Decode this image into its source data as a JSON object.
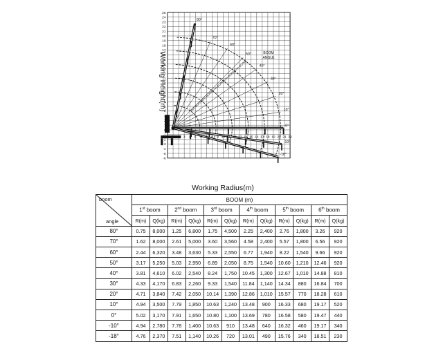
{
  "chart": {
    "x_axis_label": "Working Radius(m)",
    "y_axis_label": "Working Height(m)",
    "boom_angle_note_1": "BOOM",
    "boom_angle_note_2": "ANGLE",
    "x_ticks": [
      "0",
      "1",
      "2",
      "3",
      "4",
      "5",
      "6",
      "7",
      "8",
      "9",
      "10",
      "11",
      "12",
      "13",
      "14",
      "15",
      "16",
      "17",
      "18",
      "19",
      "20",
      "21",
      "22"
    ],
    "y_ticks": [
      "25",
      "24",
      "23",
      "22",
      "21",
      "20",
      "19",
      "18",
      "17",
      "16",
      "15",
      "14",
      "13",
      "12",
      "11",
      "10",
      "9",
      "8",
      "7",
      "6",
      "5",
      "4",
      "3",
      "2",
      "1",
      "0",
      "-1",
      "-2",
      "-3",
      "-4",
      "-5",
      "-6"
    ],
    "angle_labels": [
      "80°",
      "70°",
      "60°",
      "50°",
      "40°",
      "30°",
      "20°",
      "10°",
      "0°",
      "-10°",
      "-18°"
    ],
    "boom_labels": [
      "6TH BOOM",
      "5TH BOOM",
      "4TH BOOM",
      "3RD BOOM",
      "2ND BOOM"
    ],
    "colors": {
      "ink": "#111111"
    }
  },
  "table": {
    "corner_top": "boom",
    "corner_bottom": "angle",
    "boom_header": "BOOM (m)",
    "booms": [
      {
        "num": "1",
        "sup": "st",
        "word": "boom"
      },
      {
        "num": "2",
        "sup": "nd",
        "word": "boom"
      },
      {
        "num": "3",
        "sup": "rd",
        "word": "boom"
      },
      {
        "num": "4",
        "sup": "th",
        "word": "boom"
      },
      {
        "num": "5",
        "sup": "th",
        "word": "boom"
      },
      {
        "num": "6",
        "sup": "th",
        "word": "boom"
      }
    ],
    "sub_r": "R(m)",
    "sub_q": "Q(kg)",
    "rows": [
      {
        "angle": "80°",
        "cells": [
          "0.75",
          "8,000",
          "1.25",
          "6,800",
          "1.75",
          "4,500",
          "2.25",
          "2,400",
          "2.76",
          "1,800",
          "3.26",
          "920"
        ]
      },
      {
        "angle": "70°",
        "cells": [
          "1.62",
          "8,000",
          "2.61",
          "5,000",
          "3.60",
          "3,560",
          "4.58",
          "2,400",
          "5.57",
          "1,800",
          "6.56",
          "920"
        ]
      },
      {
        "angle": "60°",
        "cells": [
          "2.44",
          "6,320",
          "3.48",
          "3,630",
          "5.33",
          "2,550",
          "6.77",
          "1,940",
          "8.22",
          "1,540",
          "9.66",
          "920"
        ]
      },
      {
        "angle": "50°",
        "cells": [
          "3.17",
          "5,250",
          "5.03",
          "2,950",
          "6.89",
          "2,050",
          "8.75",
          "1,540",
          "10.60",
          "1,210",
          "12.46",
          "920"
        ]
      },
      {
        "angle": "40°",
        "cells": [
          "3.81",
          "4,610",
          "6.02",
          "2,540",
          "8.24",
          "1,750",
          "10.45",
          "1,300",
          "12.67",
          "1,010",
          "14.88",
          "810"
        ]
      },
      {
        "angle": "30°",
        "cells": [
          "4.33",
          "4,170",
          "6.83",
          "2,260",
          "9.33",
          "1,540",
          "11.84",
          "1,140",
          "14.34",
          "880",
          "16.84",
          "700"
        ]
      },
      {
        "angle": "20°",
        "cells": [
          "4.71",
          "3,840",
          "7.42",
          "2,050",
          "10.14",
          "1,390",
          "12.86",
          "1,010",
          "15.57",
          "770",
          "18.28",
          "610"
        ]
      },
      {
        "angle": "10°",
        "cells": [
          "4.94",
          "3,500",
          "7.79",
          "1,850",
          "10.63",
          "1,240",
          "13.48",
          "900",
          "16.33",
          "680",
          "19.17",
          "520"
        ]
      },
      {
        "angle": "0°",
        "cells": [
          "5.02",
          "3,170",
          "7.91",
          "1,650",
          "10.80",
          "1,100",
          "13.69",
          "780",
          "16.58",
          "580",
          "19.47",
          "440"
        ]
      },
      {
        "angle": "-10°",
        "cells": [
          "4.94",
          "2,780",
          "7.78",
          "1,400",
          "10.63",
          "910",
          "13.48",
          "640",
          "16.32",
          "460",
          "19.17",
          "340"
        ]
      },
      {
        "angle": "-18°",
        "cells": [
          "4.76",
          "2,370",
          "7.51",
          "1,140",
          "10.26",
          "720",
          "13.01",
          "490",
          "15.76",
          "340",
          "18.51",
          "230"
        ]
      }
    ]
  }
}
